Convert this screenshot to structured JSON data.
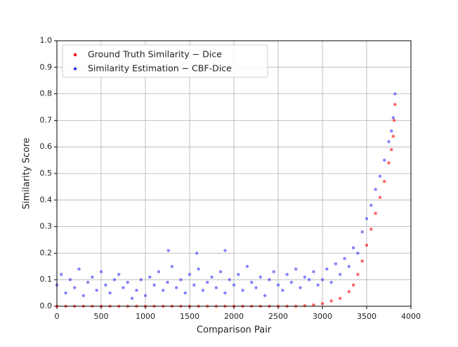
{
  "chart_data": {
    "type": "scatter",
    "xlabel": "Comparison Pair",
    "ylabel": "Similarity Score",
    "xlim": [
      0,
      4000
    ],
    "xticks": [
      0,
      500,
      1000,
      1500,
      2000,
      2500,
      3000,
      3500,
      4000
    ],
    "ylim": [
      0,
      1
    ],
    "yticks": [
      {
        "value": 0,
        "label": "0.0"
      },
      {
        "value": 0.1,
        "label": "0.1"
      },
      {
        "value": 0.2,
        "label": "0.2"
      },
      {
        "value": 0.3,
        "label": "0.3"
      },
      {
        "value": 0.4,
        "label": "0.4"
      },
      {
        "value": 0.5,
        "label": "0.5"
      },
      {
        "value": 0.6,
        "label": "0.6"
      },
      {
        "value": 0.7,
        "label": "0.7"
      },
      {
        "value": 0.8,
        "label": "0.8"
      },
      {
        "value": 0.9,
        "label": "0.9"
      },
      {
        "value": 1,
        "label": "1.0"
      }
    ],
    "grid": true,
    "legend": "upper left",
    "series": [
      {
        "name": "Ground Truth Similarity − Dice",
        "color": "#ff0000",
        "x": [
          0,
          100,
          200,
          300,
          400,
          500,
          600,
          700,
          800,
          900,
          1000,
          1100,
          1200,
          1300,
          1400,
          1500,
          1600,
          1700,
          1800,
          1900,
          2000,
          2100,
          2200,
          2300,
          2400,
          2500,
          2600,
          2700,
          2800,
          2900,
          3000,
          3100,
          3200,
          3300,
          3350,
          3400,
          3450,
          3500,
          3550,
          3600,
          3650,
          3700,
          3750,
          3780,
          3800,
          3810,
          3820
        ],
        "values": [
          0,
          0,
          0,
          0,
          0,
          0,
          0,
          0,
          0,
          0,
          0,
          0,
          0,
          0,
          0,
          0,
          0,
          0,
          0,
          0,
          0,
          0,
          0,
          0,
          0,
          0,
          0,
          0,
          0.002,
          0.005,
          0.01,
          0.02,
          0.03,
          0.055,
          0.08,
          0.12,
          0.17,
          0.23,
          0.29,
          0.35,
          0.41,
          0.47,
          0.54,
          0.59,
          0.64,
          0.7,
          0.76
        ]
      },
      {
        "name": "Similarity Estimation − CBF-Dice",
        "color": "#3333ff",
        "x": [
          0,
          50,
          100,
          150,
          200,
          250,
          300,
          350,
          400,
          450,
          500,
          550,
          600,
          650,
          700,
          750,
          800,
          850,
          900,
          950,
          1000,
          1050,
          1100,
          1150,
          1200,
          1250,
          1300,
          1350,
          1400,
          1450,
          1500,
          1550,
          1600,
          1650,
          1700,
          1750,
          1800,
          1850,
          1900,
          1950,
          2000,
          2050,
          2100,
          2150,
          2200,
          2250,
          2300,
          2350,
          2400,
          2450,
          2500,
          2550,
          2600,
          2650,
          2700,
          2750,
          2800,
          2850,
          2900,
          2950,
          3000,
          3050,
          3100,
          3150,
          3200,
          3250,
          3300,
          3350,
          3400,
          3450,
          3500,
          3550,
          3600,
          3650,
          3700,
          3750,
          3780,
          3800,
          3820,
          1260,
          1580,
          1900
        ],
        "values": [
          0.08,
          0.12,
          0.05,
          0.1,
          0.07,
          0.14,
          0.04,
          0.09,
          0.11,
          0.06,
          0.13,
          0.08,
          0.05,
          0.1,
          0.12,
          0.07,
          0.09,
          0.03,
          0.06,
          0.1,
          0.04,
          0.11,
          0.08,
          0.13,
          0.06,
          0.09,
          0.15,
          0.07,
          0.1,
          0.05,
          0.12,
          0.08,
          0.14,
          0.06,
          0.09,
          0.11,
          0.07,
          0.13,
          0.05,
          0.1,
          0.08,
          0.12,
          0.06,
          0.15,
          0.09,
          0.07,
          0.11,
          0.04,
          0.1,
          0.13,
          0.08,
          0.06,
          0.12,
          0.09,
          0.14,
          0.07,
          0.11,
          0.1,
          0.13,
          0.08,
          0.1,
          0.14,
          0.09,
          0.16,
          0.12,
          0.18,
          0.15,
          0.22,
          0.2,
          0.28,
          0.33,
          0.38,
          0.44,
          0.49,
          0.55,
          0.62,
          0.66,
          0.71,
          0.8,
          0.21,
          0.2,
          0.21
        ]
      }
    ]
  }
}
